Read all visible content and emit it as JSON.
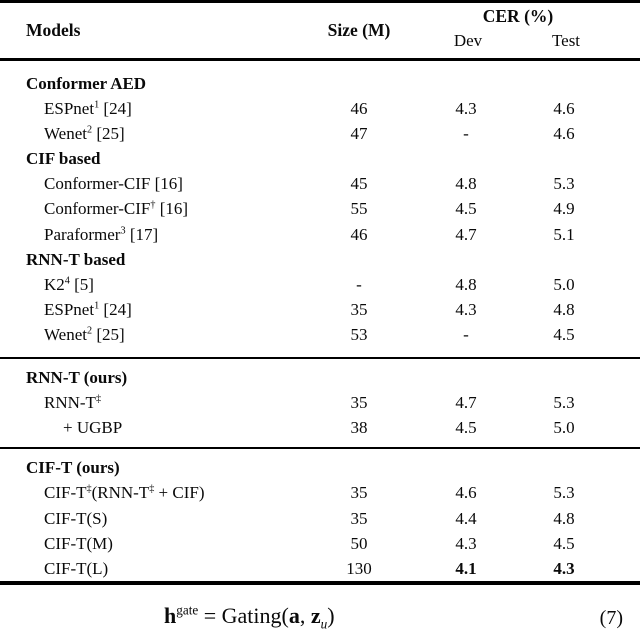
{
  "table": {
    "header": {
      "models": "Models",
      "size": "Size (M)",
      "cer": "CER (%)",
      "dev": "Dev",
      "test": "Test"
    },
    "rows": [
      {
        "type": "group",
        "model": [
          {
            "t": "Conformer AED"
          }
        ]
      },
      {
        "type": "item",
        "model": [
          {
            "t": "ESPnet"
          },
          {
            "t": "1",
            "sup": true
          },
          {
            "t": " [24]"
          }
        ],
        "size": "46",
        "dev": "4.3",
        "test": "4.6"
      },
      {
        "type": "item",
        "model": [
          {
            "t": "Wenet"
          },
          {
            "t": "2",
            "sup": true
          },
          {
            "t": " [25]"
          }
        ],
        "size": "47",
        "dev": "-",
        "test": "4.6"
      },
      {
        "type": "group",
        "model": [
          {
            "t": "CIF based"
          }
        ]
      },
      {
        "type": "item",
        "model": [
          {
            "t": "Conformer-CIF [16]"
          }
        ],
        "size": "45",
        "dev": "4.8",
        "test": "5.3"
      },
      {
        "type": "item",
        "model": [
          {
            "t": "Conformer-CIF"
          },
          {
            "t": "†",
            "sup": true
          },
          {
            "t": " [16]"
          }
        ],
        "size": "55",
        "dev": "4.5",
        "test": "4.9"
      },
      {
        "type": "item",
        "model": [
          {
            "t": "Paraformer"
          },
          {
            "t": "3",
            "sup": true
          },
          {
            "t": " [17]"
          }
        ],
        "size": "46",
        "dev": "4.7",
        "test": "5.1"
      },
      {
        "type": "group",
        "model": [
          {
            "t": "RNN-T based"
          }
        ]
      },
      {
        "type": "item",
        "model": [
          {
            "t": "K2"
          },
          {
            "t": "4",
            "sup": true
          },
          {
            "t": " [5]"
          }
        ],
        "size": "-",
        "dev": "4.8",
        "test": "5.0"
      },
      {
        "type": "item",
        "model": [
          {
            "t": "ESPnet"
          },
          {
            "t": "1",
            "sup": true
          },
          {
            "t": " [24]"
          }
        ],
        "size": "35",
        "dev": "4.3",
        "test": "4.8"
      },
      {
        "type": "item",
        "model": [
          {
            "t": "Wenet"
          },
          {
            "t": "2",
            "sup": true
          },
          {
            "t": " [25]"
          }
        ],
        "size": "53",
        "dev": "-",
        "test": "4.5"
      },
      {
        "type": "group",
        "model": [
          {
            "t": "RNN-T (ours)"
          }
        ]
      },
      {
        "type": "item",
        "model": [
          {
            "t": "RNN-T"
          },
          {
            "t": "‡",
            "sup": true
          }
        ],
        "size": "35",
        "dev": "4.7",
        "test": "5.3"
      },
      {
        "type": "item2",
        "model": [
          {
            "t": "+ UGBP"
          }
        ],
        "size": "38",
        "dev": "4.5",
        "test": "5.0"
      },
      {
        "type": "group",
        "model": [
          {
            "t": "CIF-T (ours)"
          }
        ]
      },
      {
        "type": "item",
        "model": [
          {
            "t": "CIF-T"
          },
          {
            "t": "‡",
            "sup": true
          },
          {
            "t": "(RNN-T"
          },
          {
            "t": "‡",
            "sup": true
          },
          {
            "t": " + CIF)"
          }
        ],
        "size": "35",
        "dev": "4.6",
        "test": "5.3"
      },
      {
        "type": "item",
        "model": [
          {
            "t": "CIF-T(S)"
          }
        ],
        "size": "35",
        "dev": "4.4",
        "test": "4.8"
      },
      {
        "type": "item",
        "model": [
          {
            "t": "CIF-T(M)"
          }
        ],
        "size": "50",
        "dev": "4.3",
        "test": "4.5"
      },
      {
        "type": "item",
        "model": [
          {
            "t": "CIF-T(L)"
          }
        ],
        "size": "130",
        "dev": "4.1",
        "test": "4.3",
        "bold": true
      }
    ]
  },
  "equation": {
    "segments": [
      {
        "t": "h",
        "b": true
      },
      {
        "t": "gate",
        "sup": true
      },
      {
        "t": " = "
      },
      {
        "t": "Gating("
      },
      {
        "t": "a",
        "b": true
      },
      {
        "t": ", "
      },
      {
        "t": "z",
        "b": true
      },
      {
        "t": "u",
        "sub": true,
        "i": true
      },
      {
        "t": ")"
      }
    ],
    "number": "(7)"
  }
}
